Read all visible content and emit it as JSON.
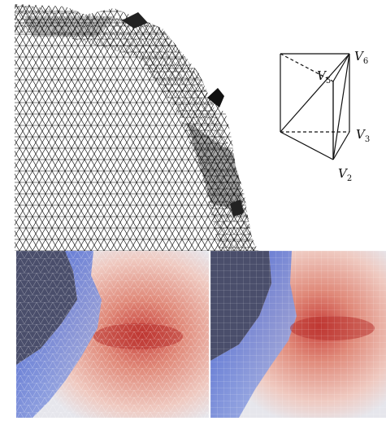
{
  "figure": {
    "prism_vertices": [
      {
        "name": "V",
        "sub": "6"
      },
      {
        "name": "V",
        "sub": "5"
      },
      {
        "name": "V",
        "sub": "3"
      },
      {
        "name": "V",
        "sub": "2"
      }
    ]
  },
  "colors": {
    "mesh_line": "#000000",
    "land": "#4a4e6b",
    "field_warm": "#c8403a",
    "field_cool": "#3450c8",
    "field_neutral": "#e6e6ec"
  }
}
